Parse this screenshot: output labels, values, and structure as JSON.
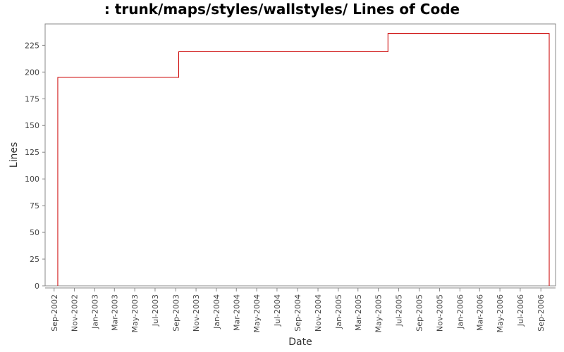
{
  "chart_data": {
    "type": "line",
    "step": true,
    "title": ": trunk/maps/styles/wallstyles/ Lines of Code",
    "xlabel": "Date",
    "ylabel": "Lines",
    "ylim": [
      0,
      245
    ],
    "yticks": [
      0,
      25,
      50,
      75,
      100,
      125,
      150,
      175,
      200,
      225
    ],
    "xlim": [
      "2002-08-05",
      "2006-10-15"
    ],
    "xticks": [
      {
        "date": "2002-09-01",
        "label": "Sep-2002"
      },
      {
        "date": "2002-11-01",
        "label": "Nov-2002"
      },
      {
        "date": "2003-01-01",
        "label": "Jan-2003"
      },
      {
        "date": "2003-03-01",
        "label": "Mar-2003"
      },
      {
        "date": "2003-05-01",
        "label": "May-2003"
      },
      {
        "date": "2003-07-01",
        "label": "Jul-2003"
      },
      {
        "date": "2003-09-01",
        "label": "Sep-2003"
      },
      {
        "date": "2003-11-01",
        "label": "Nov-2003"
      },
      {
        "date": "2004-01-01",
        "label": "Jan-2004"
      },
      {
        "date": "2004-03-01",
        "label": "Mar-2004"
      },
      {
        "date": "2004-05-01",
        "label": "May-2004"
      },
      {
        "date": "2004-07-01",
        "label": "Jul-2004"
      },
      {
        "date": "2004-09-01",
        "label": "Sep-2004"
      },
      {
        "date": "2004-11-01",
        "label": "Nov-2004"
      },
      {
        "date": "2005-01-01",
        "label": "Jan-2005"
      },
      {
        "date": "2005-03-01",
        "label": "Mar-2005"
      },
      {
        "date": "2005-05-01",
        "label": "May-2005"
      },
      {
        "date": "2005-07-01",
        "label": "Jul-2005"
      },
      {
        "date": "2005-09-01",
        "label": "Sep-2005"
      },
      {
        "date": "2005-11-01",
        "label": "Nov-2005"
      },
      {
        "date": "2006-01-01",
        "label": "Jan-2006"
      },
      {
        "date": "2006-03-01",
        "label": "Mar-2006"
      },
      {
        "date": "2006-05-01",
        "label": "May-2006"
      },
      {
        "date": "2006-07-01",
        "label": "Jul-2006"
      },
      {
        "date": "2006-09-01",
        "label": "Sep-2006"
      }
    ],
    "series": [
      {
        "color": "#cc0000",
        "points": [
          {
            "x": "2002-09-12",
            "y": 0
          },
          {
            "x": "2002-09-12",
            "y": 195
          },
          {
            "x": "2003-09-10",
            "y": 219
          },
          {
            "x": "2005-05-30",
            "y": 236
          },
          {
            "x": "2006-09-26",
            "y": 236
          },
          {
            "x": "2006-09-26",
            "y": 0
          }
        ]
      }
    ],
    "grid": false,
    "legend": "none"
  }
}
